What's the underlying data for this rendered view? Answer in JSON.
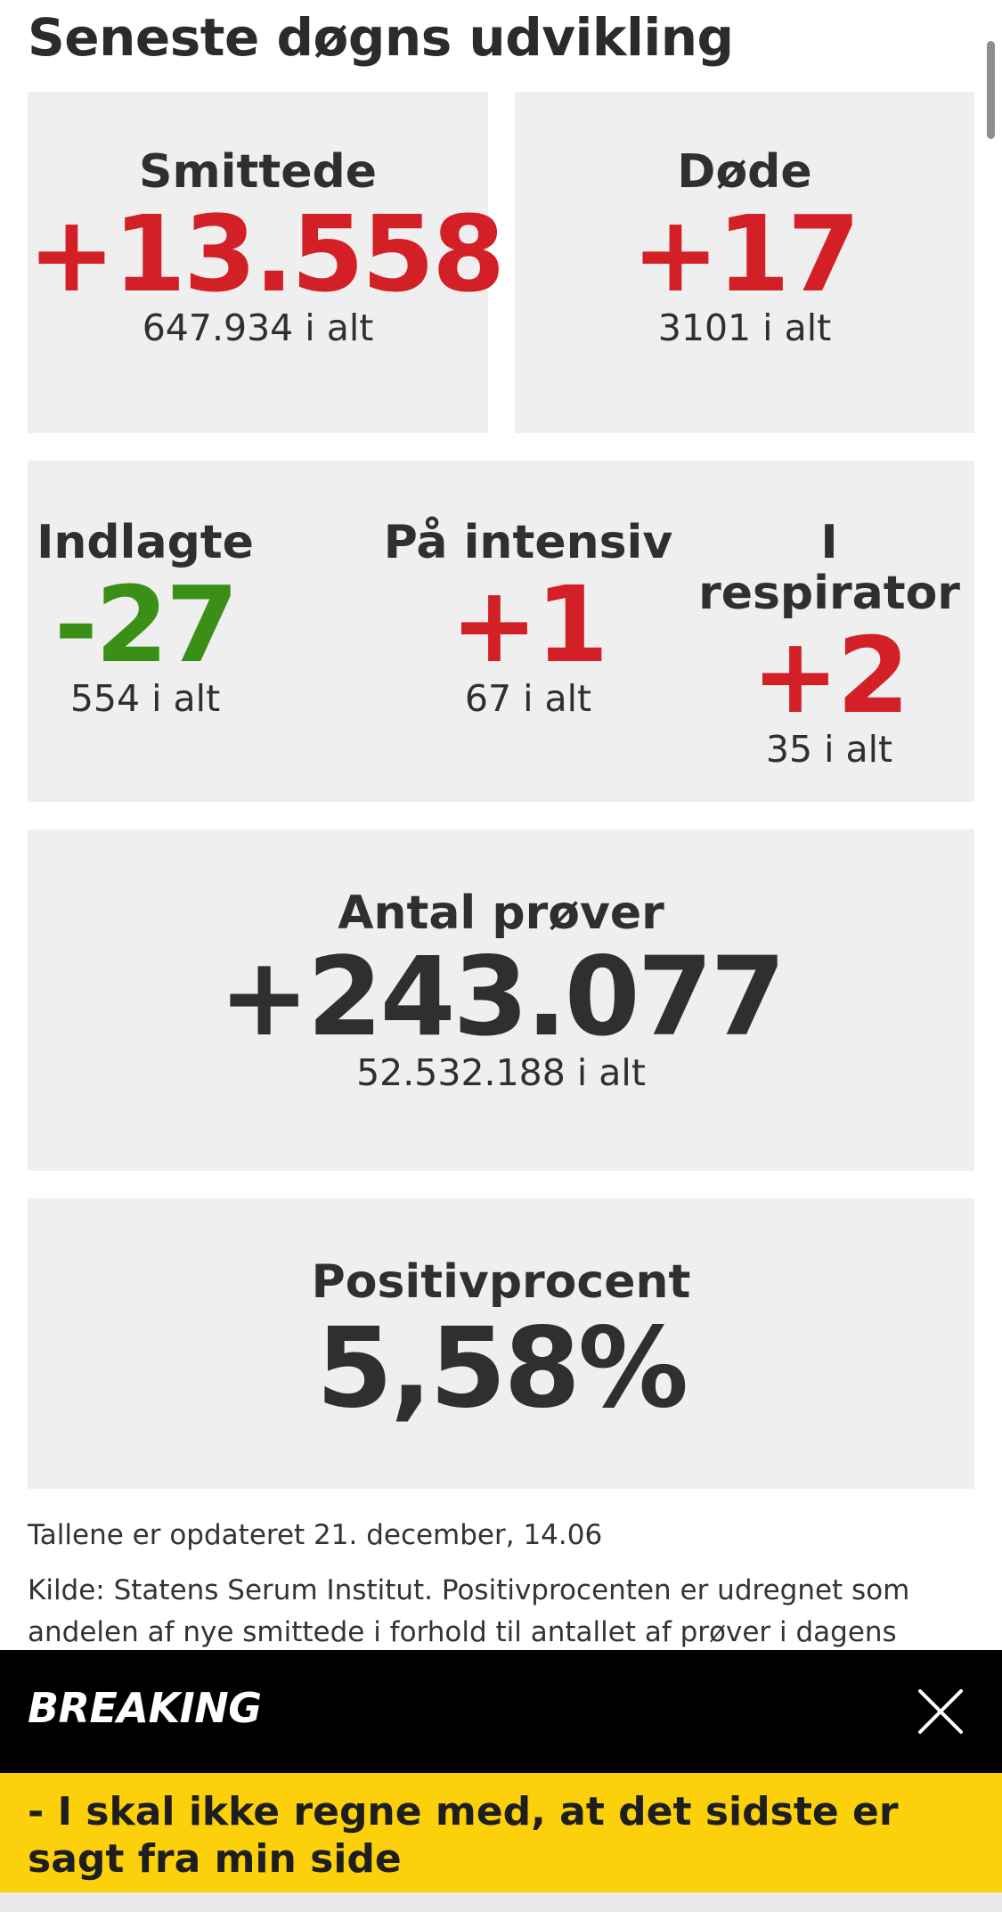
{
  "section": {
    "title": "Seneste døgns udvikling"
  },
  "infected": {
    "label": "Smittede",
    "delta": "+13.558",
    "total": "647.934 i alt"
  },
  "deaths": {
    "label": "Døde",
    "delta": "+17",
    "total": "3101 i alt"
  },
  "hospitalized": {
    "label": "Indlagte",
    "delta": "-27",
    "total": "554 i alt"
  },
  "intensive": {
    "label": "På intensiv",
    "delta": "+1",
    "total": "67 i alt"
  },
  "respirator": {
    "label": "I respirator",
    "delta": "+2",
    "total": "35 i alt"
  },
  "tests": {
    "label": "Antal prøver",
    "delta": "+243.077",
    "total": "52.532.188 i alt"
  },
  "positive_rate": {
    "label": "Positivprocent",
    "value": "5,58%"
  },
  "footer": {
    "updated": "Tallene er opdateret 21. december, 14.06",
    "source": "Kilde: Statens Serum Institut. Positivprocenten er udregnet som andelen af nye smittede i forhold til antallet af prøver i dagens"
  },
  "breaking": {
    "label": "BREAKING",
    "close_icon": "close-icon",
    "headline": "- I skal ikke regne med, at det sidste er sagt fra min side"
  },
  "colors": {
    "increase": "#d31f26",
    "decrease": "#3a8f17",
    "card_bg": "#efefef",
    "breaking_bg": "#000000",
    "headline_bg": "#fcd00a"
  }
}
